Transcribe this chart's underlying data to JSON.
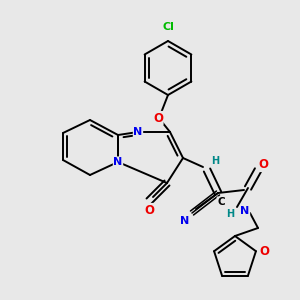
{
  "bg_color": "#e8e8e8",
  "atom_colors": {
    "N": "#0000ee",
    "O": "#ee0000",
    "C": "#000000",
    "Cl": "#00bb00",
    "H": "#008888"
  },
  "lw": 1.4,
  "fs": 8.0
}
